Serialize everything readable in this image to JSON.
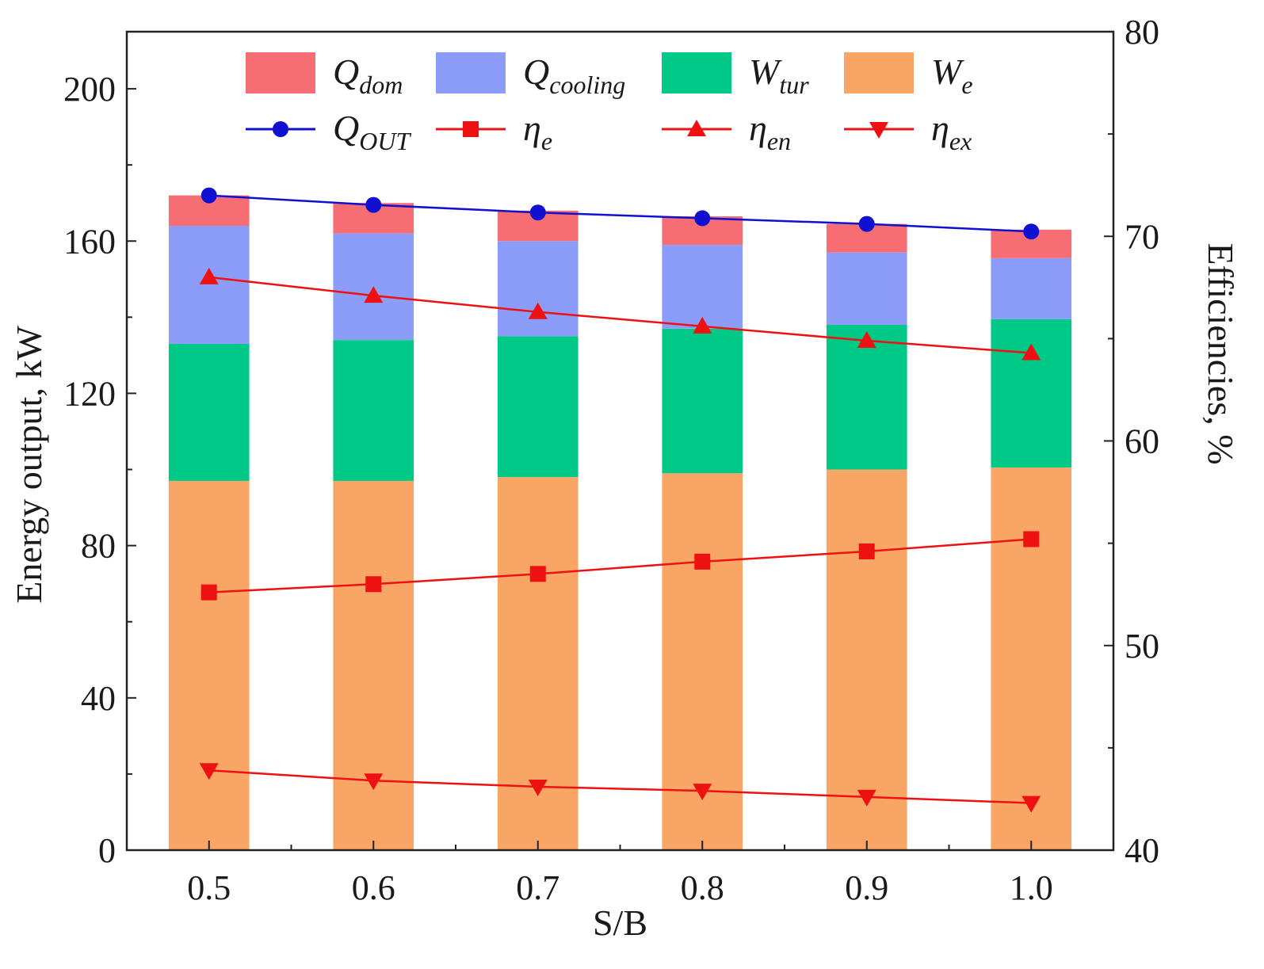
{
  "chart_data": {
    "type": "bar",
    "stacked": true,
    "xlabel": "S/B",
    "ylabel": "Energy output, kW",
    "y2label": "Efficiencies, %",
    "categories": [
      "0.5",
      "0.6",
      "0.7",
      "0.8",
      "0.9",
      "1.0"
    ],
    "ylim": [
      0,
      215
    ],
    "yticks": [
      0,
      40,
      80,
      120,
      160,
      200
    ],
    "y2lim": [
      40,
      80
    ],
    "y2ticks": [
      40,
      50,
      60,
      70,
      80
    ],
    "bar_series": [
      {
        "name": "W_e",
        "symbol": "W",
        "sub": "e",
        "color": "#F9A566",
        "values": [
          97,
          97,
          98,
          99,
          100,
          100.5
        ]
      },
      {
        "name": "W_tur",
        "symbol": "W",
        "sub": "tur",
        "color": "#00C987",
        "values": [
          36,
          37,
          37,
          38,
          38,
          39
        ]
      },
      {
        "name": "Q_cooling",
        "symbol": "Q",
        "sub": "cooling",
        "color": "#8C9CF9",
        "values": [
          31,
          28,
          25,
          22,
          19,
          16
        ]
      },
      {
        "name": "Q_dom",
        "symbol": "Q",
        "sub": "dom",
        "color": "#F66E73",
        "values": [
          8,
          8,
          8,
          7.5,
          7.5,
          7.5
        ]
      }
    ],
    "line_series": [
      {
        "name": "Q_OUT",
        "symbol": "Q",
        "sub": "OUT",
        "axis": "left",
        "marker": "circle",
        "color": "#1010D0",
        "values": [
          172,
          169.5,
          167.5,
          166,
          164.5,
          162.5
        ]
      },
      {
        "name": "η_e",
        "symbol": "η",
        "sub": "e",
        "axis": "right",
        "marker": "square",
        "color": "#EE1111",
        "values": [
          52.6,
          53,
          53.5,
          54.1,
          54.6,
          55.2
        ]
      },
      {
        "name": "η_en",
        "symbol": "η",
        "sub": "en",
        "axis": "right",
        "marker": "triangle-up",
        "color": "#EE1111",
        "values": [
          68,
          67.1,
          66.3,
          65.6,
          64.9,
          64.3
        ]
      },
      {
        "name": "η_ex",
        "symbol": "η",
        "sub": "ex",
        "axis": "right",
        "marker": "triangle-down",
        "color": "#EE1111",
        "values": [
          43.9,
          43.4,
          43.1,
          42.9,
          42.6,
          42.3
        ]
      }
    ],
    "legend_order": [
      "Q_dom",
      "Q_cooling",
      "W_tur",
      "W_e",
      "Q_OUT",
      "η_e",
      "η_en",
      "η_ex"
    ],
    "legend_position": "top-center"
  }
}
